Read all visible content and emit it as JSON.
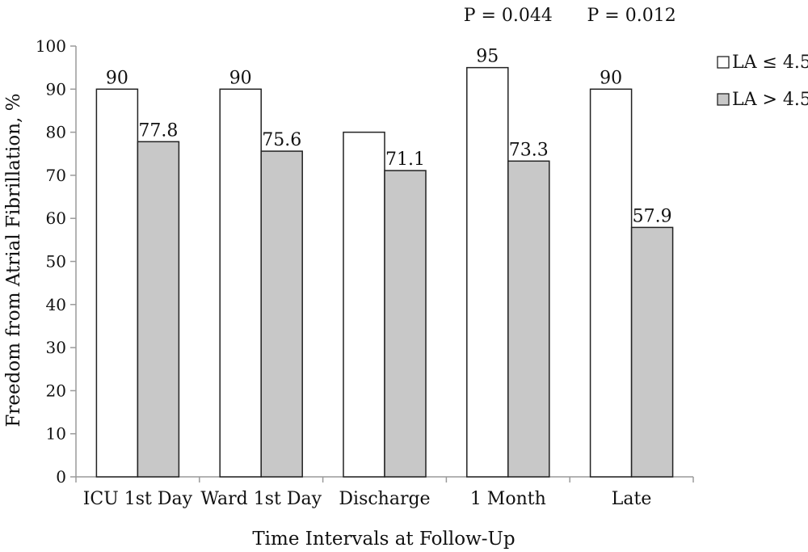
{
  "chart_data": {
    "type": "bar",
    "categories": [
      "ICU 1st Day",
      "Ward 1st Day",
      "Discharge",
      "1 Month",
      "Late"
    ],
    "series": [
      {
        "name": "LA ≤ 4.5",
        "values": [
          90,
          90,
          80,
          95,
          90
        ],
        "color": "#ffffff",
        "labels": [
          "90",
          "90",
          "",
          "95",
          "90"
        ]
      },
      {
        "name": "LA > 4.5",
        "values": [
          77.8,
          75.6,
          71.1,
          73.3,
          57.9
        ],
        "color": "#c8c8c8",
        "labels": [
          "77.8",
          "75.6",
          "71.1",
          "73.3",
          "57.9"
        ]
      }
    ],
    "xlabel": "Time Intervals at Follow-Up",
    "ylabel": "Freedom from Atrial Fibrillation, %",
    "ylim": [
      0,
      100
    ],
    "yticks": [
      0,
      10,
      20,
      30,
      40,
      50,
      60,
      70,
      80,
      90,
      100
    ],
    "annotations": [
      {
        "text": "P = 0.044",
        "category": "1 Month"
      },
      {
        "text": "P = 0.012",
        "category": "Late"
      }
    ],
    "legend_position": "right",
    "grid": false
  }
}
